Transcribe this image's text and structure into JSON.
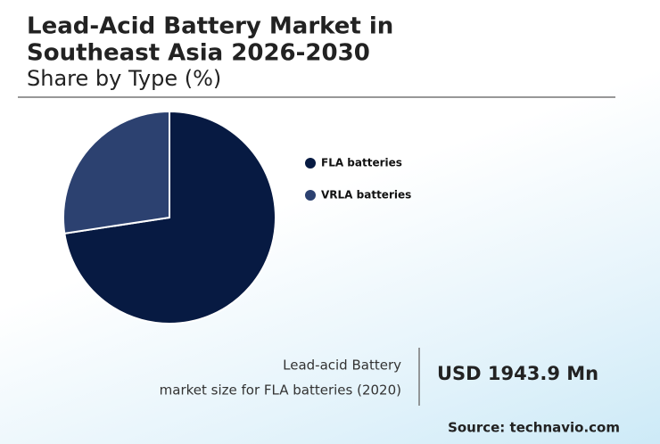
{
  "chart_data": {
    "type": "pie",
    "title_lines": [
      "Lead-Acid Battery Market in",
      "Southeast Asia 2026-2030"
    ],
    "subtitle": "Share by Type (%)",
    "categories": [
      "FLA batteries",
      "VRLA batteries"
    ],
    "values": [
      72.6,
      27.4
    ],
    "colors": [
      "#071a42",
      "#2c4170"
    ],
    "stat_label_lines": [
      "Lead-acid Battery",
      "market size for FLA batteries (2020)"
    ],
    "stat_value": "USD 1943.9 Mn",
    "source": "Source: technavio.com"
  }
}
